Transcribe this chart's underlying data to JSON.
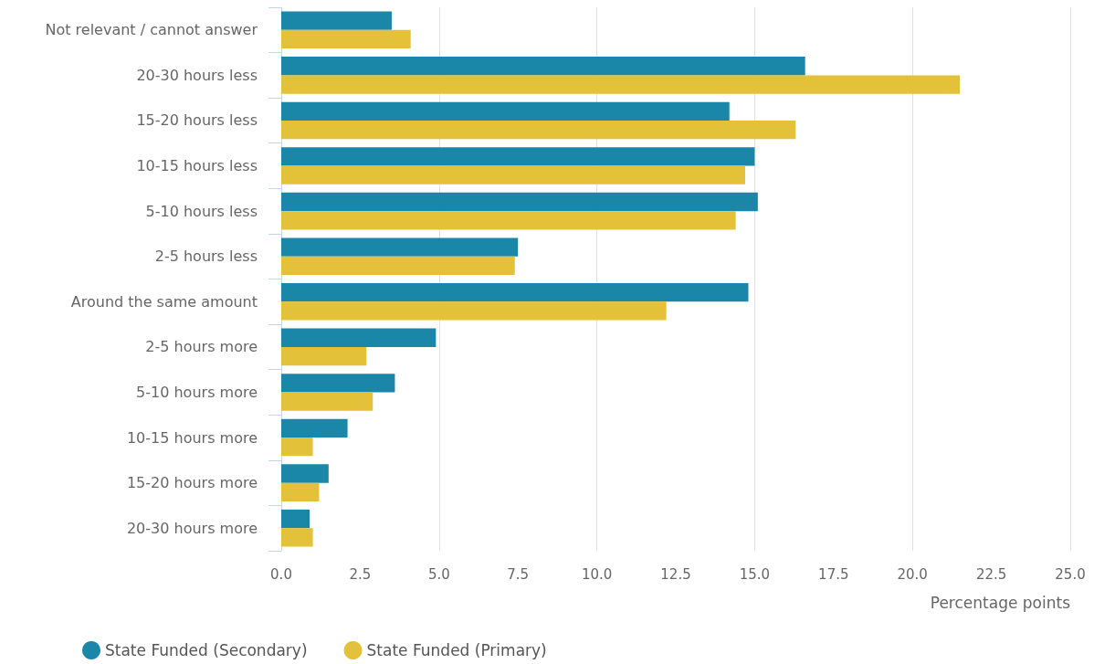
{
  "chart_data": {
    "type": "bar",
    "orientation": "horizontal",
    "xlabel": "Percentage points",
    "categories": [
      "Not relevant / cannot answer",
      "20-30 hours less",
      "15-20 hours less",
      "10-15 hours less",
      "5-10 hours less",
      "2-5 hours less",
      "Around the same amount",
      "2-5 hours more",
      "5-10 hours more",
      "10-15 hours more",
      "15-20 hours more",
      "20-30 hours more"
    ],
    "series": [
      {
        "name": "State Funded (Secondary)",
        "color": "#1a87a8",
        "values": [
          3.5,
          16.6,
          14.2,
          15.0,
          15.1,
          7.5,
          14.8,
          4.9,
          3.6,
          2.1,
          1.5,
          0.9
        ]
      },
      {
        "name": "State Funded (Primary)",
        "color": "#e3c138",
        "values": [
          4.1,
          21.5,
          16.3,
          14.7,
          14.4,
          7.4,
          12.2,
          2.7,
          2.9,
          1.0,
          1.2,
          1.0
        ]
      }
    ],
    "xlim": [
      0,
      25
    ],
    "xticks": [
      {
        "value": 0,
        "label": "0.0"
      },
      {
        "value": 2.5,
        "label": "2.5"
      },
      {
        "value": 5,
        "label": "5.0"
      },
      {
        "value": 7.5,
        "label": "7.5"
      },
      {
        "value": 10,
        "label": "10.0"
      },
      {
        "value": 12.5,
        "label": "12.5"
      },
      {
        "value": 15,
        "label": "15.0"
      },
      {
        "value": 17.5,
        "label": "17.5"
      },
      {
        "value": 20,
        "label": "20.0"
      },
      {
        "value": 22.5,
        "label": "22.5"
      },
      {
        "value": 25,
        "label": "25.0"
      }
    ],
    "grid": "x",
    "legend": "bottom left"
  }
}
